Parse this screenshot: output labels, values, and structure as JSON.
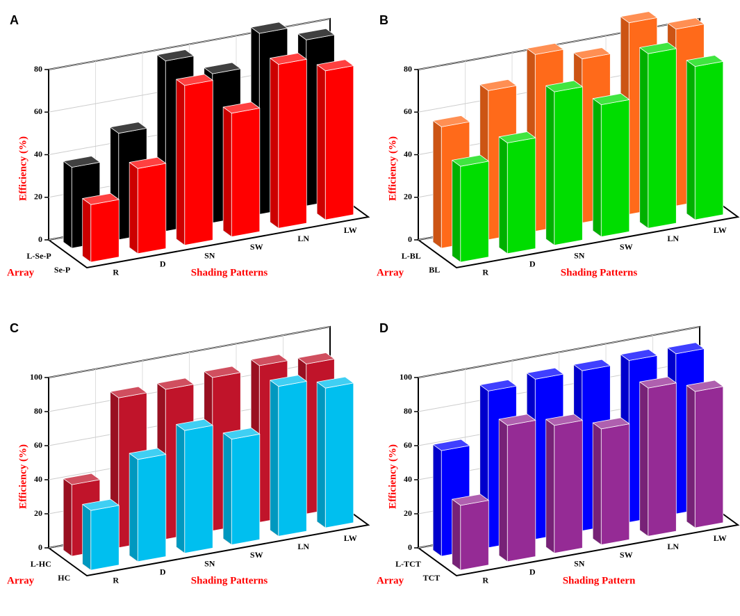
{
  "chart_data": [
    {
      "type": "bar3d",
      "panel": "A",
      "ylabel": "Efficiency (%)",
      "xlabel": "Shading Patterns",
      "zlabel": "Array",
      "categories": [
        "R",
        "D",
        "SN",
        "SW",
        "LN",
        "LW"
      ],
      "series": [
        {
          "name": "L-Se-P",
          "color": "#000000",
          "values": [
            38,
            50,
            80,
            70,
            85,
            78
          ]
        },
        {
          "name": "Se-P",
          "color": "#ff0000",
          "values": [
            27,
            40,
            75,
            58,
            77,
            70
          ]
        }
      ],
      "ylim": [
        0,
        80
      ],
      "yticks": [
        0,
        20,
        40,
        60,
        80
      ],
      "grid": true
    },
    {
      "type": "bar3d",
      "panel": "B",
      "ylabel": "Efficiency (%)",
      "xlabel": "Shading Patterns",
      "zlabel": "Array",
      "categories": [
        "R",
        "D",
        "SN",
        "SW",
        "LN",
        "LW"
      ],
      "series": [
        {
          "name": "L-BL",
          "color": "#ff6a1a",
          "values": [
            57,
            70,
            83,
            77,
            90,
            83
          ]
        },
        {
          "name": "BL",
          "color": "#00dd00",
          "values": [
            45,
            52,
            72,
            62,
            82,
            72
          ]
        }
      ],
      "ylim": [
        0,
        80
      ],
      "yticks": [
        0,
        20,
        40,
        60,
        80
      ],
      "grid": true
    },
    {
      "type": "bar3d",
      "panel": "C",
      "ylabel": "Efficiency (%)",
      "xlabel": "Shading Patterns",
      "zlabel": "Array",
      "categories": [
        "R",
        "D",
        "SN",
        "SW",
        "LN",
        "LW"
      ],
      "series": [
        {
          "name": "L-HC",
          "color": "#c0142a",
          "values": [
            42,
            88,
            88,
            90,
            92,
            88
          ]
        },
        {
          "name": "HC",
          "color": "#00bfef",
          "values": [
            35,
            60,
            72,
            62,
            88,
            82
          ]
        }
      ],
      "ylim": [
        0,
        100
      ],
      "yticks": [
        0,
        20,
        40,
        60,
        80,
        100
      ],
      "grid": true
    },
    {
      "type": "bar3d",
      "panel": "D",
      "ylabel": "Efficiency (%)",
      "xlabel": "Shading Pattern",
      "zlabel": "Array",
      "categories": [
        "R",
        "D",
        "SN",
        "SW",
        "LN",
        "LW"
      ],
      "series": [
        {
          "name": "L-TCT",
          "color": "#0000ff",
          "values": [
            62,
            92,
            94,
            94,
            95,
            94
          ]
        },
        {
          "name": "TCT",
          "color": "#952b95",
          "values": [
            38,
            80,
            75,
            68,
            87,
            80
          ]
        }
      ],
      "ylim": [
        0,
        100
      ],
      "yticks": [
        0,
        20,
        40,
        60,
        80,
        100
      ],
      "grid": true
    }
  ]
}
